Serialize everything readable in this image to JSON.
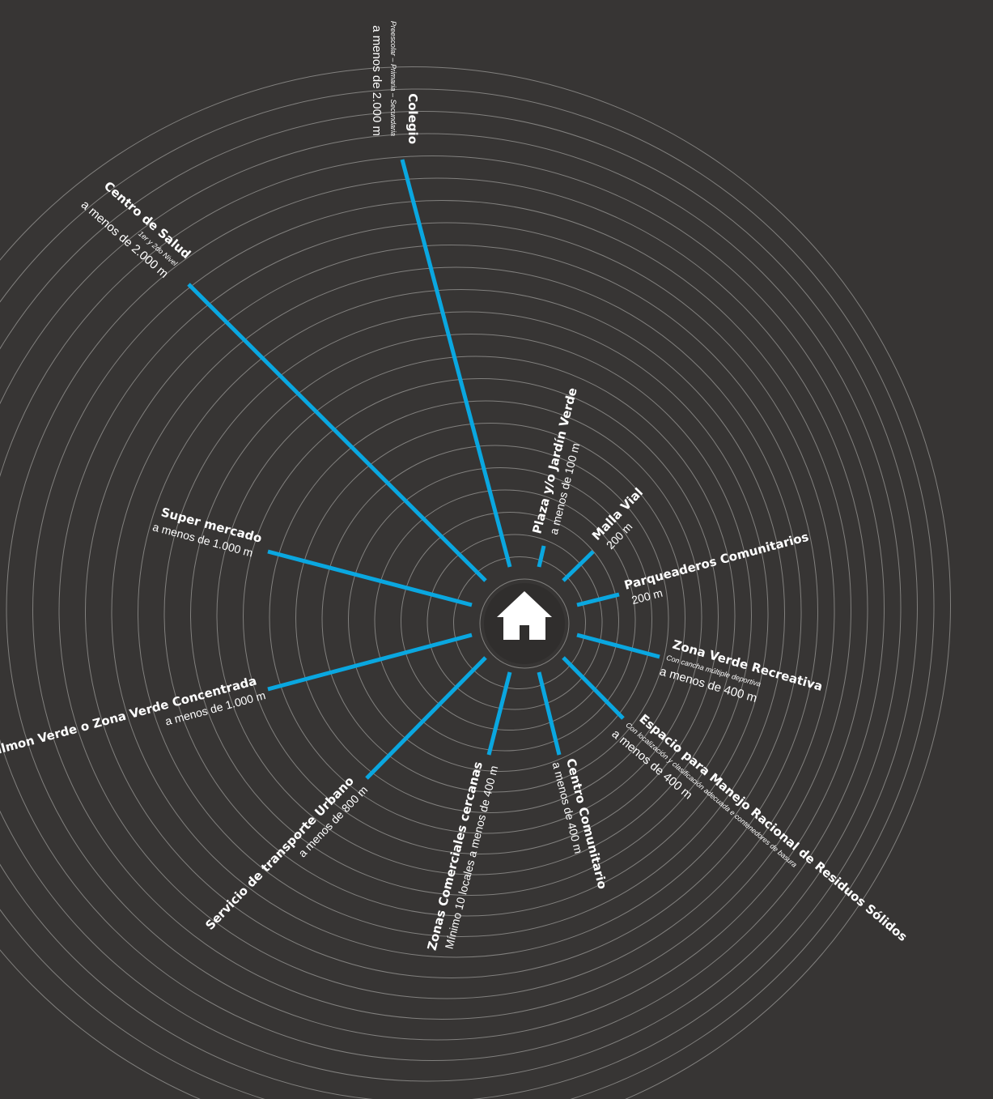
{
  "colors": {
    "background": "#373534",
    "spoke": "#0aa7e0",
    "ring": "#8a8886",
    "text": "#ffffff"
  },
  "center": {
    "icon": "house-icon"
  },
  "services": [
    {
      "id": "colegio",
      "title": "Colegio",
      "note": "Preescolar – Primaria – Secundaria",
      "distance": "a menos de 2.000 m"
    },
    {
      "id": "centro-salud",
      "title": "Centro de Salud",
      "note": "1er y 2do Nivel",
      "distance": "a menos de 2.000 m"
    },
    {
      "id": "plaza",
      "title": "Plaza y/o Jardín Verde",
      "note": "",
      "distance": "a menos de 100 m"
    },
    {
      "id": "malla-vial",
      "title": "Malla Vial",
      "note": "",
      "distance": "200 m"
    },
    {
      "id": "parqueaderos",
      "title": "Parqueaderos Comunitarios",
      "note": "",
      "distance": "200 m"
    },
    {
      "id": "zona-verde-recreativa",
      "title": "Zona Verde Recreativa",
      "note": "Con cancha múltiple deportiva",
      "distance": "a menos de 400 m"
    },
    {
      "id": "residuos",
      "title": "Espacio para Manejo Racional de Residuos Sólidos",
      "note": "Con localización y clasificación adecuada e contenedores de basura",
      "distance": "a menos de 400 m"
    },
    {
      "id": "centro-comunitario",
      "title": "Centro Comunitario",
      "note": "",
      "distance": "a menos de 400 m"
    },
    {
      "id": "zonas-comerciales",
      "title": "Zonas Comerciales cercanas",
      "note": "",
      "distance": "Mínimo 10 locales a menos de 400 m"
    },
    {
      "id": "transporte",
      "title": "Servicio de transporte Urbano",
      "note": "",
      "distance": "a menos de 800 m"
    },
    {
      "id": "pulmon-verde",
      "title": "Púlmon Verde o Zona Verde Concentrada",
      "note": "",
      "distance": "a menos de 1.000 m"
    },
    {
      "id": "supermercado",
      "title": "Super mercado",
      "note": "",
      "distance": "a menos de 1.000 m"
    }
  ]
}
